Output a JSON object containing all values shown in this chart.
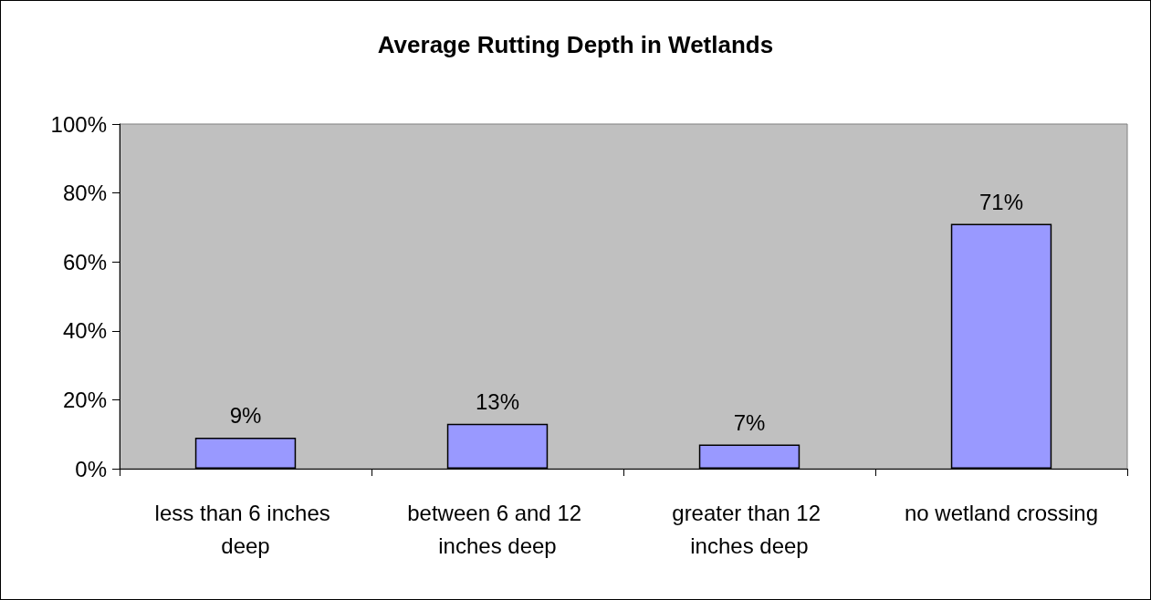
{
  "chart_data": {
    "type": "bar",
    "title": "Average Rutting Depth in Wetlands",
    "categories": [
      "less than 6 inches deep",
      "between 6 and 12 inches deep",
      "greater than 12 inches deep",
      "no wetland crossing"
    ],
    "values": [
      9,
      13,
      7,
      71
    ],
    "color": "#9999ff",
    "value_labels": [
      "9%",
      "13%",
      "7%",
      "71%"
    ],
    "ylim": [
      0,
      100
    ],
    "yticks": [
      {
        "value": 0,
        "label": "0%"
      },
      {
        "value": 20,
        "label": "20%"
      },
      {
        "value": 40,
        "label": "40%"
      },
      {
        "value": 60,
        "label": "60%"
      },
      {
        "value": 80,
        "label": "80%"
      },
      {
        "value": 100,
        "label": "100%"
      }
    ],
    "grid": false
  }
}
